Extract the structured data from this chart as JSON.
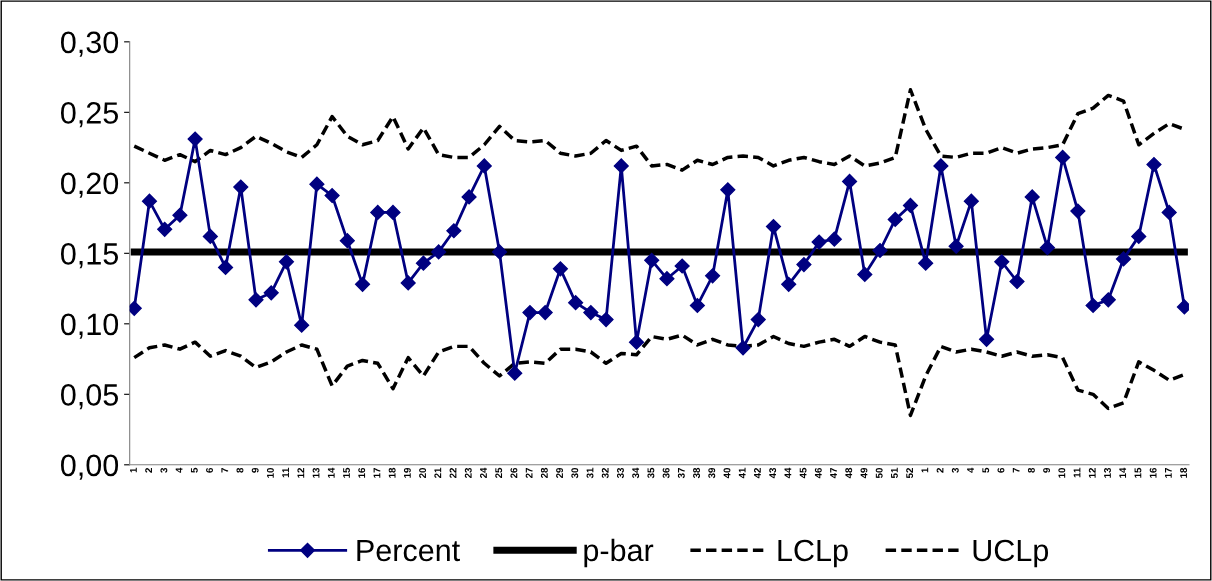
{
  "chart_data": {
    "type": "line",
    "categories": [
      "1",
      "2",
      "3",
      "4",
      "5",
      "6",
      "7",
      "8",
      "9",
      "10",
      "11",
      "12",
      "13",
      "14",
      "15",
      "16",
      "17",
      "18",
      "19",
      "20",
      "21",
      "22",
      "23",
      "24",
      "25",
      "26",
      "27",
      "28",
      "29",
      "30",
      "31",
      "32",
      "33",
      "34",
      "35",
      "36",
      "37",
      "38",
      "39",
      "40",
      "41",
      "42",
      "43",
      "44",
      "45",
      "46",
      "47",
      "48",
      "49",
      "50",
      "51",
      "52",
      "1",
      "2",
      "3",
      "4",
      "5",
      "6",
      "7",
      "8",
      "9",
      "10",
      "11",
      "12",
      "13",
      "14",
      "15",
      "16",
      "17",
      "18"
    ],
    "series": [
      {
        "name": "Percent",
        "color": "#000080",
        "marker": "diamond",
        "line_style": "solid",
        "values": [
          0.111,
          0.187,
          0.167,
          0.177,
          0.231,
          0.162,
          0.14,
          0.197,
          0.117,
          0.122,
          0.144,
          0.099,
          0.199,
          0.191,
          0.159,
          0.128,
          0.179,
          0.179,
          0.129,
          0.143,
          0.151,
          0.166,
          0.19,
          0.212,
          0.151,
          0.065,
          0.108,
          0.108,
          0.139,
          0.115,
          0.108,
          0.103,
          0.212,
          0.087,
          0.145,
          0.132,
          0.141,
          0.113,
          0.134,
          0.195,
          0.083,
          0.103,
          0.169,
          0.128,
          0.142,
          0.158,
          0.16,
          0.201,
          0.135,
          0.152,
          0.174,
          0.184,
          0.143,
          0.212,
          0.155,
          0.187,
          0.089,
          0.144,
          0.13,
          0.19,
          0.154,
          0.218,
          0.18,
          0.113,
          0.117,
          0.146,
          0.162,
          0.213,
          0.179,
          0.112
        ]
      },
      {
        "name": "p-bar",
        "color": "#000000",
        "marker": "none",
        "line_style": "solid",
        "values": [
          0.151,
          0.151,
          0.151,
          0.151,
          0.151,
          0.151,
          0.151,
          0.151,
          0.151,
          0.151,
          0.151,
          0.151,
          0.151,
          0.151,
          0.151,
          0.151,
          0.151,
          0.151,
          0.151,
          0.151,
          0.151,
          0.151,
          0.151,
          0.151,
          0.151,
          0.151,
          0.151,
          0.151,
          0.151,
          0.151,
          0.151,
          0.151,
          0.151,
          0.151,
          0.151,
          0.151,
          0.151,
          0.151,
          0.151,
          0.151,
          0.151,
          0.151,
          0.151,
          0.151,
          0.151,
          0.151,
          0.151,
          0.151,
          0.151,
          0.151,
          0.151,
          0.151,
          0.151,
          0.151,
          0.151,
          0.151,
          0.151,
          0.151,
          0.151,
          0.151,
          0.151,
          0.151,
          0.151,
          0.151,
          0.151,
          0.151,
          0.151,
          0.151,
          0.151,
          0.151
        ]
      },
      {
        "name": "LCLp",
        "color": "#000000",
        "marker": "none",
        "line_style": "dashed",
        "values": [
          0.076,
          0.083,
          0.085,
          0.082,
          0.087,
          0.077,
          0.081,
          0.077,
          0.069,
          0.073,
          0.08,
          0.085,
          0.082,
          0.056,
          0.07,
          0.074,
          0.072,
          0.054,
          0.076,
          0.063,
          0.08,
          0.084,
          0.084,
          0.072,
          0.063,
          0.072,
          0.073,
          0.072,
          0.082,
          0.082,
          0.08,
          0.072,
          0.079,
          0.078,
          0.091,
          0.089,
          0.092,
          0.085,
          0.089,
          0.085,
          0.084,
          0.085,
          0.091,
          0.086,
          0.084,
          0.087,
          0.089,
          0.084,
          0.091,
          0.087,
          0.085,
          0.035,
          0.063,
          0.084,
          0.08,
          0.082,
          0.08,
          0.077,
          0.08,
          0.077,
          0.078,
          0.076,
          0.053,
          0.05,
          0.04,
          0.044,
          0.073,
          0.067,
          0.06,
          0.064
        ]
      },
      {
        "name": "UCLp",
        "color": "#000000",
        "marker": "none",
        "line_style": "dashed",
        "values": [
          0.226,
          0.221,
          0.216,
          0.22,
          0.215,
          0.223,
          0.22,
          0.225,
          0.233,
          0.228,
          0.222,
          0.218,
          0.227,
          0.247,
          0.233,
          0.227,
          0.23,
          0.247,
          0.224,
          0.239,
          0.22,
          0.218,
          0.218,
          0.227,
          0.24,
          0.23,
          0.229,
          0.23,
          0.221,
          0.219,
          0.221,
          0.23,
          0.223,
          0.226,
          0.212,
          0.213,
          0.209,
          0.216,
          0.213,
          0.218,
          0.219,
          0.218,
          0.212,
          0.216,
          0.218,
          0.215,
          0.213,
          0.219,
          0.212,
          0.214,
          0.218,
          0.266,
          0.238,
          0.219,
          0.218,
          0.221,
          0.221,
          0.225,
          0.221,
          0.224,
          0.225,
          0.227,
          0.249,
          0.253,
          0.262,
          0.258,
          0.227,
          0.235,
          0.242,
          0.238
        ]
      }
    ],
    "ylim": [
      0,
      0.3
    ],
    "yticks": [
      {
        "value": 0,
        "label": "0,00"
      },
      {
        "value": 0.05,
        "label": "0,05"
      },
      {
        "value": 0.1,
        "label": "0,10"
      },
      {
        "value": 0.15,
        "label": "0,15"
      },
      {
        "value": 0.2,
        "label": "0,20"
      },
      {
        "value": 0.25,
        "label": "0,25"
      },
      {
        "value": 0.3,
        "label": "0,30"
      }
    ],
    "grid": false,
    "legend": "bottom"
  }
}
